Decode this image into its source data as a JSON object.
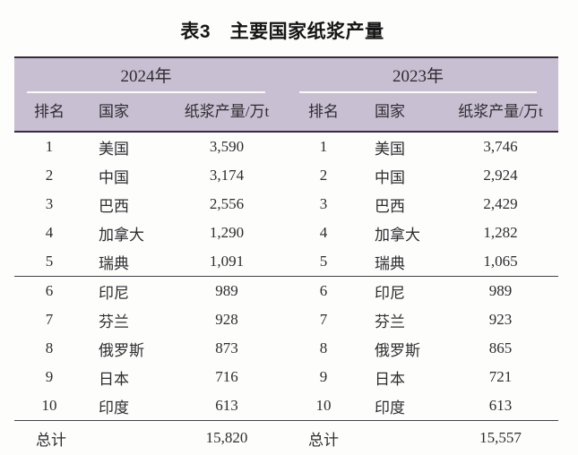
{
  "title": "表3　主要国家纸浆产量",
  "colors": {
    "header_bg": "#c8bfd3",
    "band_border": "#332e3b",
    "row_rule": "#45414b",
    "spanner_line": "#faf9fb",
    "text": "#2e2c2f"
  },
  "table": {
    "groups": [
      {
        "year": "2024年",
        "headers": [
          "排名",
          "国家",
          "纸浆产量/万t"
        ],
        "rows": [
          {
            "rank": "1",
            "country": "美国",
            "value": "3,590"
          },
          {
            "rank": "2",
            "country": "中国",
            "value": "3,174"
          },
          {
            "rank": "3",
            "country": "巴西",
            "value": "2,556"
          },
          {
            "rank": "4",
            "country": "加拿大",
            "value": "1,290"
          },
          {
            "rank": "5",
            "country": "瑞典",
            "value": "1,091"
          },
          {
            "rank": "6",
            "country": "印尼",
            "value": "989"
          },
          {
            "rank": "7",
            "country": "芬兰",
            "value": "928"
          },
          {
            "rank": "8",
            "country": "俄罗斯",
            "value": "873"
          },
          {
            "rank": "9",
            "country": "日本",
            "value": "716"
          },
          {
            "rank": "10",
            "country": "印度",
            "value": "613"
          }
        ],
        "total_label": "总计",
        "total_value": "15,820"
      },
      {
        "year": "2023年",
        "headers": [
          "排名",
          "国家",
          "纸浆产量/万t"
        ],
        "rows": [
          {
            "rank": "1",
            "country": "美国",
            "value": "3,746"
          },
          {
            "rank": "2",
            "country": "中国",
            "value": "2,924"
          },
          {
            "rank": "3",
            "country": "巴西",
            "value": "2,429"
          },
          {
            "rank": "4",
            "country": "加拿大",
            "value": "1,282"
          },
          {
            "rank": "5",
            "country": "瑞典",
            "value": "1,065"
          },
          {
            "rank": "6",
            "country": "印尼",
            "value": "989"
          },
          {
            "rank": "7",
            "country": "芬兰",
            "value": "923"
          },
          {
            "rank": "8",
            "country": "俄罗斯",
            "value": "865"
          },
          {
            "rank": "9",
            "country": "日本",
            "value": "721"
          },
          {
            "rank": "10",
            "country": "印度",
            "value": "613"
          }
        ],
        "total_label": "总计",
        "total_value": "15,557"
      }
    ]
  }
}
